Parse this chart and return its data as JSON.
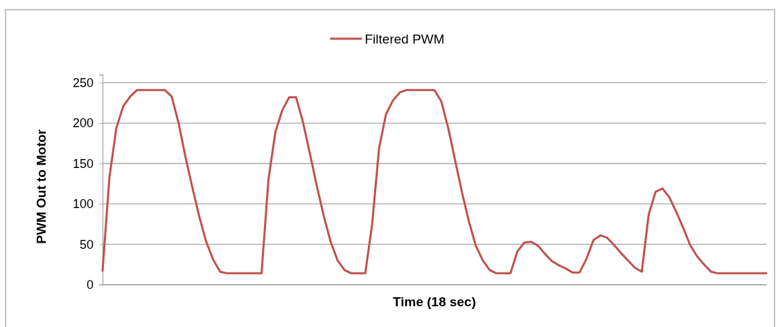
{
  "chart_data": {
    "type": "line",
    "xlabel": "Time (18 sec)",
    "ylabel": "PWM Out to Motor",
    "categories": [
      null,
      null,
      null,
      null,
      null,
      null,
      null,
      null,
      null,
      null,
      null,
      null,
      null,
      null,
      null,
      null,
      null,
      null,
      null,
      null,
      null,
      null,
      null,
      null,
      null,
      null,
      null,
      null,
      null,
      null,
      null,
      null,
      null,
      null,
      null,
      null,
      null,
      null,
      null,
      null,
      null,
      null,
      null,
      null,
      null,
      null,
      null,
      null,
      null,
      null,
      null,
      null,
      null,
      null,
      null,
      null,
      null,
      null,
      null,
      null,
      null,
      null,
      null,
      null,
      null,
      null,
      null,
      null,
      null,
      null,
      null,
      null,
      null,
      null,
      null,
      null,
      null,
      null,
      null,
      null,
      null,
      null,
      null,
      null,
      null,
      null,
      null,
      null,
      null,
      null,
      null,
      null,
      null,
      null,
      null,
      null,
      null
    ],
    "series": [
      {
        "name": "Filtered PWM",
        "color": "#c0504d",
        "values": [
          17,
          133,
          194,
          221,
          233,
          241,
          241,
          241,
          241,
          241,
          233,
          200,
          158,
          120,
          84,
          53,
          31,
          16,
          14,
          14,
          14,
          14,
          14,
          14,
          130,
          189,
          216,
          232,
          232,
          201,
          162,
          122,
          85,
          53,
          30,
          18,
          14,
          14,
          14,
          75,
          169,
          211,
          228,
          238,
          241,
          241,
          241,
          241,
          241,
          227,
          194,
          154,
          114,
          78,
          48,
          30,
          18,
          14,
          14,
          14,
          41,
          52,
          53,
          48,
          38,
          29,
          24,
          20,
          15,
          15,
          32,
          55,
          61,
          58,
          49,
          39,
          30,
          21,
          16,
          87,
          115,
          119,
          108,
          90,
          70,
          49,
          35,
          25,
          16,
          14,
          14,
          14,
          14,
          14,
          14,
          14,
          14
        ]
      }
    ],
    "ylim": [
      0,
      260
    ],
    "yticks": [
      0,
      50,
      100,
      150,
      200,
      250
    ],
    "grid": "y",
    "legend": "top",
    "marker": "none",
    "line_style": "solid",
    "tick_labels": "y"
  }
}
